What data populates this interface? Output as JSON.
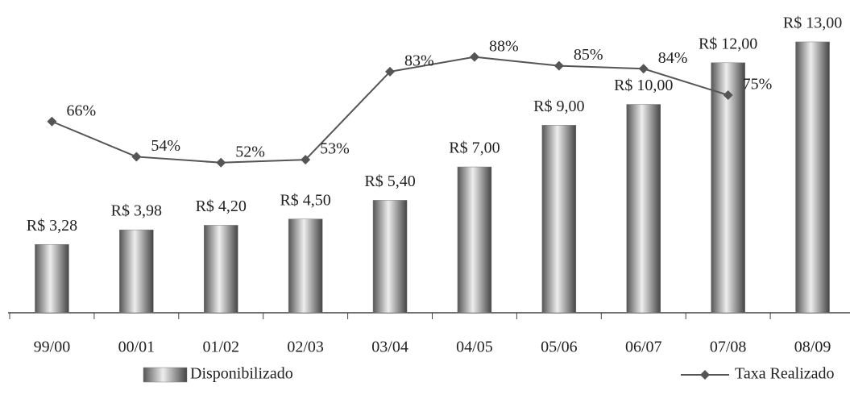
{
  "chart_data": {
    "type": "combo",
    "categories": [
      "99/00",
      "00/01",
      "01/02",
      "02/03",
      "03/04",
      "04/05",
      "05/06",
      "06/07",
      "07/08",
      "08/09"
    ],
    "series": [
      {
        "name": "Disponibilizado",
        "type": "bar",
        "color": "#7a7a7a",
        "values": [
          3.28,
          3.98,
          4.2,
          4.5,
          5.4,
          7,
          9,
          10,
          12,
          13
        ],
        "value_labels": [
          "R$ 3,28",
          "R$ 3,98",
          "R$ 4,20",
          "R$ 4,50",
          "R$ 5,40",
          "R$ 7,00",
          "R$ 9,00",
          "R$ 10,00",
          "R$ 12,00",
          "R$ 13,00"
        ]
      },
      {
        "name": "Taxa Realizado",
        "type": "line",
        "color": "#555555",
        "values": [
          66,
          54,
          52,
          53,
          83,
          88,
          85,
          84,
          75,
          null
        ],
        "value_labels": [
          "66%",
          "54%",
          "52%",
          "53%",
          "83%",
          "88%",
          "85%",
          "84%",
          "75%",
          null
        ]
      }
    ]
  }
}
